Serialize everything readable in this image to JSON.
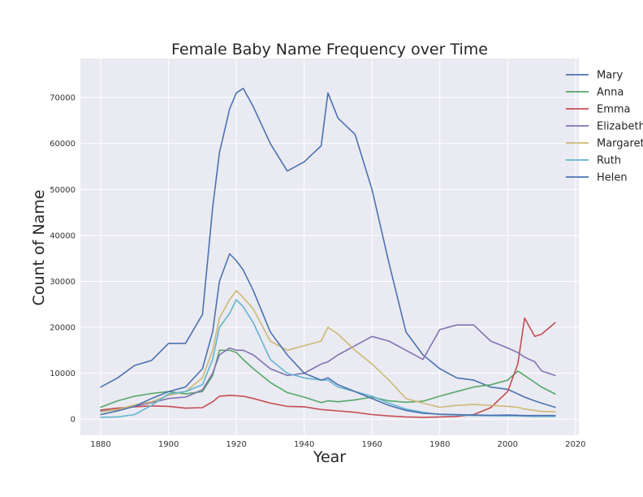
{
  "chart_data": {
    "type": "line",
    "title": "Female Baby Name Frequency over Time",
    "xlabel": "Year",
    "ylabel": "Count of Name",
    "xlim": [
      1874,
      2021
    ],
    "ylim": [
      -3500,
      78500
    ],
    "xticks": [
      1880,
      1900,
      1920,
      1940,
      1960,
      1980,
      2000,
      2020
    ],
    "yticks": [
      0,
      10000,
      20000,
      30000,
      40000,
      50000,
      60000,
      70000
    ],
    "grid": true,
    "legend": "top-right outside",
    "x": [
      1880,
      1885,
      1890,
      1895,
      1900,
      1905,
      1910,
      1913,
      1915,
      1918,
      1920,
      1922,
      1925,
      1930,
      1935,
      1940,
      1945,
      1947,
      1950,
      1955,
      1960,
      1965,
      1970,
      1975,
      1980,
      1985,
      1990,
      1995,
      2000,
      2003,
      2005,
      2008,
      2010,
      2014
    ],
    "series": [
      {
        "name": "Mary",
        "color": "#4c72b0",
        "values": [
          7000,
          9000,
          11700,
          12800,
          16500,
          16500,
          22800,
          46000,
          58000,
          67500,
          71000,
          72000,
          68000,
          60000,
          54000,
          56000,
          59500,
          71000,
          65500,
          62000,
          50000,
          34000,
          19000,
          14000,
          11000,
          9000,
          8500,
          7000,
          6500,
          5500,
          4800,
          4000,
          3500,
          2600
        ]
      },
      {
        "name": "Anna",
        "color": "#55a868",
        "values": [
          2600,
          4000,
          5000,
          5600,
          6000,
          5500,
          6000,
          9500,
          15000,
          15000,
          14500,
          13000,
          11000,
          8000,
          5800,
          4800,
          3600,
          4000,
          3800,
          4200,
          4800,
          4000,
          3700,
          3900,
          5000,
          6000,
          7000,
          7500,
          8500,
          10500,
          9500,
          8000,
          7000,
          5500
        ]
      },
      {
        "name": "Emma",
        "color": "#c44e52",
        "values": [
          2000,
          2400,
          2700,
          2900,
          2800,
          2400,
          2500,
          3800,
          5000,
          5200,
          5100,
          5000,
          4500,
          3500,
          2800,
          2700,
          2100,
          2000,
          1800,
          1500,
          1000,
          700,
          500,
          400,
          500,
          600,
          1000,
          2500,
          6000,
          12000,
          22000,
          18000,
          18500,
          21000
        ]
      },
      {
        "name": "Elizabeth",
        "color": "#8172b2",
        "values": [
          1800,
          2000,
          2800,
          3600,
          4500,
          4800,
          6400,
          10000,
          14000,
          15500,
          15000,
          15000,
          14000,
          11000,
          9500,
          10000,
          12000,
          12500,
          14000,
          16000,
          18000,
          17000,
          15000,
          13000,
          19500,
          20500,
          20500,
          17000,
          15500,
          14500,
          13500,
          12500,
          10500,
          9500
        ]
      },
      {
        "name": "Margaret",
        "color": "#ccb974",
        "values": [
          1600,
          2100,
          3100,
          3800,
          5200,
          6000,
          9000,
          15000,
          22000,
          26000,
          28000,
          26500,
          24000,
          17000,
          15000,
          16000,
          17000,
          20000,
          18500,
          15000,
          12000,
          8500,
          4500,
          3500,
          2600,
          3000,
          3200,
          3000,
          2800,
          2600,
          2200,
          1900,
          1700,
          1600
        ]
      },
      {
        "name": "Ruth",
        "color": "#64b5cd",
        "values": [
          400,
          500,
          1000,
          3000,
          5500,
          6000,
          7500,
          13000,
          20000,
          23000,
          26000,
          24500,
          21000,
          13000,
          10000,
          9000,
          8500,
          8500,
          7000,
          6000,
          5000,
          3500,
          2200,
          1500,
          1000,
          900,
          800,
          750,
          700,
          700,
          650,
          600,
          600,
          600
        ]
      },
      {
        "name": "Helen",
        "color": "#4c72b0",
        "values": [
          1000,
          1800,
          2800,
          4500,
          6000,
          7000,
          11000,
          19000,
          30000,
          36000,
          34500,
          32500,
          28000,
          19000,
          14000,
          10000,
          8500,
          9000,
          7500,
          6000,
          4500,
          3000,
          1900,
          1300,
          1100,
          1000,
          900,
          850,
          900,
          850,
          800,
          800,
          800,
          800
        ]
      }
    ]
  }
}
